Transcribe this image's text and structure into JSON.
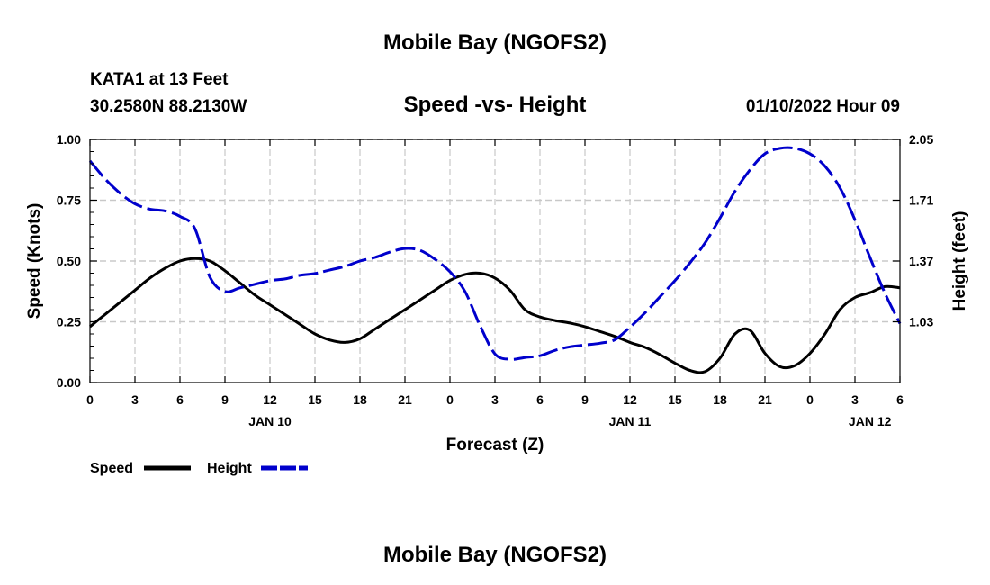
{
  "chart_data": {
    "type": "line",
    "title": "Mobile Bay (NGOFS2)",
    "footer_title": "Mobile Bay (NGOFS2)",
    "station": "KATA1 at 13 Feet",
    "location": "30.2580N  88.2130W",
    "subtitle": "Speed -vs- Height",
    "run_time": "01/10/2022 Hour 09",
    "xlabel": "Forecast (Z)",
    "ylabel_left": "Speed (Knots)",
    "ylabel_right": "Height (feet)",
    "xlim": [
      0,
      54
    ],
    "ylim_left": [
      0,
      1.0
    ],
    "ylim_right": [
      0.69,
      2.05
    ],
    "grid": true,
    "x_ticks": [
      0,
      3,
      6,
      9,
      12,
      15,
      18,
      21,
      24,
      27,
      30,
      33,
      36,
      39,
      42,
      45,
      48,
      51,
      54
    ],
    "x_tick_labels": [
      "0",
      "3",
      "6",
      "9",
      "12",
      "15",
      "18",
      "21",
      "0",
      "3",
      "6",
      "9",
      "12",
      "15",
      "18",
      "21",
      "0",
      "3",
      "6"
    ],
    "date_labels": [
      {
        "x": 12,
        "label": "JAN 10"
      },
      {
        "x": 36,
        "label": "JAN 11"
      },
      {
        "x": 52,
        "label": "JAN 12"
      }
    ],
    "y_ticks_left": [
      0.0,
      0.25,
      0.5,
      0.75,
      1.0
    ],
    "y_tick_labels_left": [
      "0.00",
      "0.25",
      "0.50",
      "0.75",
      "1.00"
    ],
    "y_ticks_right": [
      1.03,
      1.37,
      1.71,
      2.05
    ],
    "y_tick_labels_right": [
      "1.03",
      "1.37",
      "1.71",
      "2.05"
    ],
    "series": [
      {
        "name": "Speed",
        "axis": "left",
        "color": "#000000",
        "dash": "solid",
        "x": [
          0,
          1,
          2,
          3,
          4,
          5,
          6,
          7,
          8,
          9,
          10,
          11,
          12,
          13,
          14,
          15,
          16,
          17,
          18,
          19,
          20,
          21,
          22,
          23,
          24,
          25,
          26,
          27,
          28,
          29,
          30,
          31,
          32,
          33,
          34,
          35,
          36,
          37,
          38,
          39,
          40,
          41,
          42,
          43,
          44,
          45,
          46,
          47,
          48,
          49,
          50,
          51,
          52,
          53,
          54
        ],
        "values": [
          0.23,
          0.28,
          0.33,
          0.38,
          0.43,
          0.47,
          0.5,
          0.51,
          0.5,
          0.46,
          0.41,
          0.36,
          0.32,
          0.28,
          0.24,
          0.2,
          0.175,
          0.165,
          0.18,
          0.22,
          0.26,
          0.3,
          0.34,
          0.38,
          0.42,
          0.445,
          0.45,
          0.43,
          0.38,
          0.3,
          0.27,
          0.255,
          0.245,
          0.23,
          0.21,
          0.19,
          0.165,
          0.145,
          0.115,
          0.08,
          0.05,
          0.045,
          0.1,
          0.2,
          0.215,
          0.12,
          0.065,
          0.07,
          0.12,
          0.2,
          0.3,
          0.35,
          0.37,
          0.395,
          0.39
        ]
      },
      {
        "name": "Height",
        "axis": "right",
        "color": "#0000cc",
        "dash": "dashed",
        "x": [
          0,
          1,
          2,
          3,
          4,
          5,
          6,
          7,
          8,
          9,
          10,
          11,
          12,
          13,
          14,
          15,
          16,
          17,
          18,
          19,
          20,
          21,
          22,
          23,
          24,
          25,
          26,
          27,
          28,
          29,
          30,
          31,
          32,
          33,
          34,
          35,
          36,
          37,
          38,
          39,
          40,
          41,
          42,
          43,
          44,
          45,
          46,
          47,
          48,
          49,
          50,
          51,
          52,
          53,
          54
        ],
        "values": [
          1.93,
          1.83,
          1.75,
          1.69,
          1.66,
          1.65,
          1.62,
          1.55,
          1.28,
          1.2,
          1.22,
          1.24,
          1.26,
          1.27,
          1.29,
          1.3,
          1.32,
          1.34,
          1.37,
          1.39,
          1.42,
          1.44,
          1.43,
          1.38,
          1.31,
          1.2,
          1.01,
          0.85,
          0.82,
          0.83,
          0.84,
          0.87,
          0.89,
          0.9,
          0.91,
          0.93,
          1.0,
          1.08,
          1.17,
          1.26,
          1.36,
          1.47,
          1.61,
          1.76,
          1.88,
          1.97,
          2.0,
          2.0,
          1.97,
          1.9,
          1.78,
          1.6,
          1.39,
          1.19,
          1.02
        ]
      }
    ],
    "legend": [
      {
        "label": "Speed",
        "color": "#000000",
        "dash": "solid"
      },
      {
        "label": "Height",
        "color": "#0000cc",
        "dash": "dashed"
      }
    ]
  }
}
